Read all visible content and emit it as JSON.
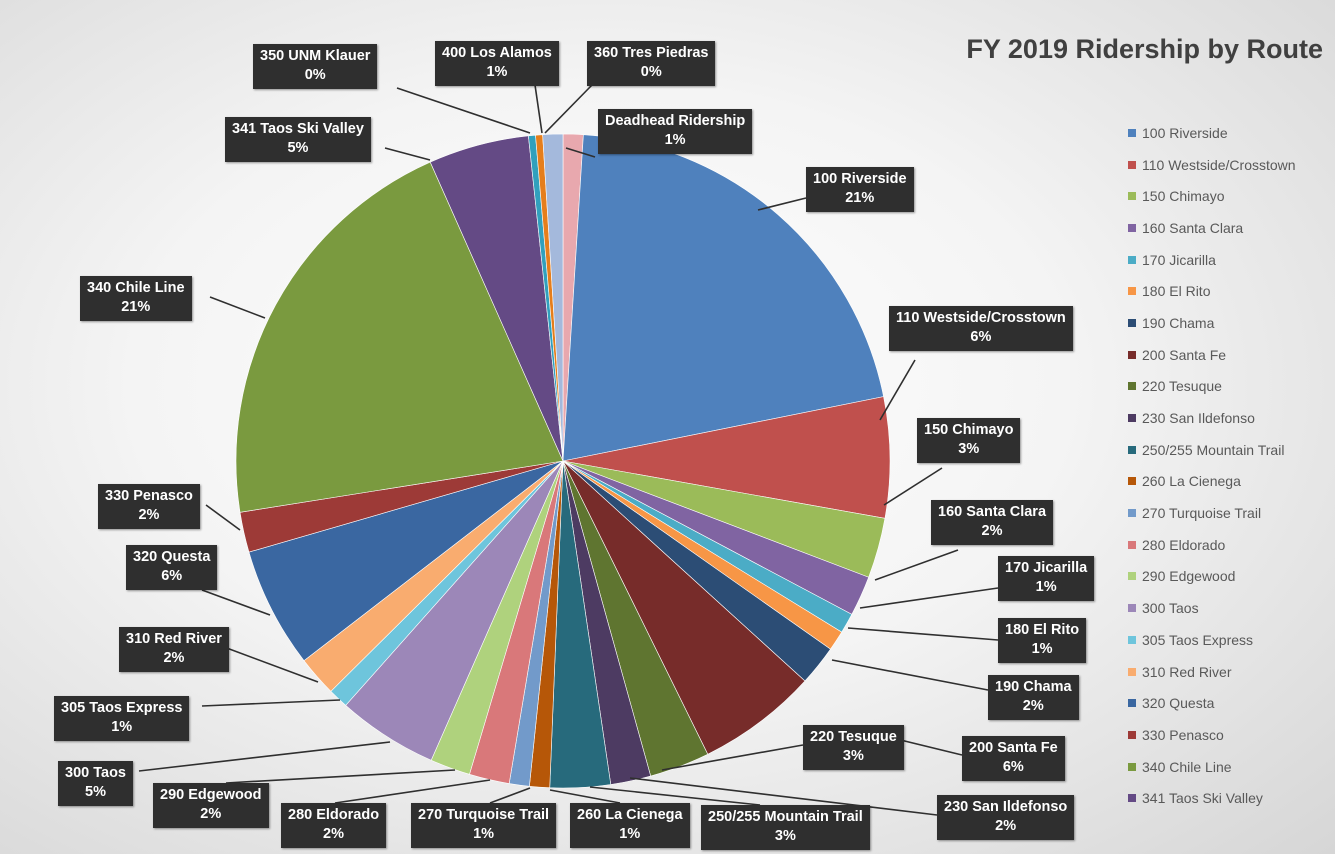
{
  "chart_data": {
    "type": "pie",
    "title": "FY 2019 Ridership by Route",
    "legend_position": "right",
    "slices": [
      {
        "label": "Deadhead Ridership",
        "value": 1,
        "color": "#e8a8ae"
      },
      {
        "label": "100 Riverside",
        "value": 21,
        "color": "#4f81bd"
      },
      {
        "label": "110 Westside/Crosstown",
        "value": 6,
        "color": "#c0504d"
      },
      {
        "label": "150 Chimayo",
        "value": 3,
        "color": "#9bbb59"
      },
      {
        "label": "160 Santa Clara",
        "value": 2,
        "color": "#8064a2"
      },
      {
        "label": "170 Jicarilla",
        "value": 1,
        "color": "#4bacc6"
      },
      {
        "label": "180 El Rito",
        "value": 1,
        "color": "#f79646"
      },
      {
        "label": "190 Chama",
        "value": 2,
        "color": "#2c4d75"
      },
      {
        "label": "200 Santa Fe",
        "value": 6,
        "color": "#772c2a"
      },
      {
        "label": "220 Tesuque",
        "value": 3,
        "color": "#5f7530"
      },
      {
        "label": "230 San Ildefonso",
        "value": 2,
        "color": "#4d3b62"
      },
      {
        "label": "250/255 Mountain Trail",
        "value": 3,
        "color": "#276a7c"
      },
      {
        "label": "260 La Cienega",
        "value": 1,
        "color": "#b65708"
      },
      {
        "label": "270 Turquoise Trail",
        "value": 1,
        "color": "#729aca"
      },
      {
        "label": "280 Eldorado",
        "value": 2,
        "color": "#d9787a"
      },
      {
        "label": "290 Edgewood",
        "value": 2,
        "color": "#afd27d"
      },
      {
        "label": "300 Taos",
        "value": 5,
        "color": "#9c87b8"
      },
      {
        "label": "305 Taos Express",
        "value": 1,
        "color": "#6ec5dc"
      },
      {
        "label": "310 Red River",
        "value": 2,
        "color": "#f9ac6f"
      },
      {
        "label": "320 Questa",
        "value": 6,
        "color": "#3a67a1"
      },
      {
        "label": "330 Penasco",
        "value": 2,
        "color": "#9d3a37"
      },
      {
        "label": "340 Chile Line",
        "value": 21,
        "color": "#7a9a3f"
      },
      {
        "label": "341 Taos Ski Valley",
        "value": 5,
        "color": "#644a85"
      },
      {
        "label": "350 UNM Klauer",
        "value": 0,
        "color": "#31a0bd"
      },
      {
        "label": "360 Tres Piedras",
        "value": 0,
        "color": "#e57e1c"
      },
      {
        "label": "400 Los Alamos",
        "value": 1,
        "color": "#a4b9dc"
      }
    ],
    "data_labels": [
      {
        "name": "Deadhead Ridership",
        "pct": "1%"
      },
      {
        "name": "100 Riverside",
        "pct": "21%"
      },
      {
        "name": "110 Westside/Crosstown",
        "pct": "6%"
      },
      {
        "name": "150 Chimayo",
        "pct": "3%"
      },
      {
        "name": "160 Santa Clara",
        "pct": "2%"
      },
      {
        "name": "170 Jicarilla",
        "pct": "1%"
      },
      {
        "name": "180 El Rito",
        "pct": "1%"
      },
      {
        "name": "190 Chama",
        "pct": "2%"
      },
      {
        "name": "200 Santa Fe",
        "pct": "6%"
      },
      {
        "name": "220 Tesuque",
        "pct": "3%"
      },
      {
        "name": "230 San Ildefonso",
        "pct": "2%"
      },
      {
        "name": "250/255 Mountain Trail",
        "pct": "3%"
      },
      {
        "name": "260 La Cienega",
        "pct": "1%"
      },
      {
        "name": "270 Turquoise Trail",
        "pct": "1%"
      },
      {
        "name": "280 Eldorado",
        "pct": "2%"
      },
      {
        "name": "290 Edgewood",
        "pct": "2%"
      },
      {
        "name": "300 Taos",
        "pct": "5%"
      },
      {
        "name": "305 Taos Express",
        "pct": "1%"
      },
      {
        "name": "310 Red River",
        "pct": "2%"
      },
      {
        "name": "320 Questa",
        "pct": "6%"
      },
      {
        "name": "330 Penasco",
        "pct": "2%"
      },
      {
        "name": "340 Chile Line",
        "pct": "21%"
      },
      {
        "name": "341 Taos Ski Valley",
        "pct": "5%"
      },
      {
        "name": "350 UNM Klauer",
        "pct": "0%"
      },
      {
        "name": "400 Los Alamos",
        "pct": "1%"
      },
      {
        "name": "360 Tres Piedras",
        "pct": "0%"
      }
    ],
    "legend": [
      "100 Riverside",
      "110 Westside/Crosstown",
      "150 Chimayo",
      "160 Santa Clara",
      "170 Jicarilla",
      "180 El Rito",
      "190 Chama",
      "200 Santa Fe",
      "220 Tesuque",
      "230 San Ildefonso",
      "250/255 Mountain Trail",
      "260 La Cienega",
      "270 Turquoise Trail",
      "280 Eldorado",
      "290 Edgewood",
      "300 Taos",
      "305 Taos Express",
      "310 Red River",
      "320 Questa",
      "330 Penasco",
      "340 Chile Line",
      "341 Taos Ski Valley"
    ]
  }
}
